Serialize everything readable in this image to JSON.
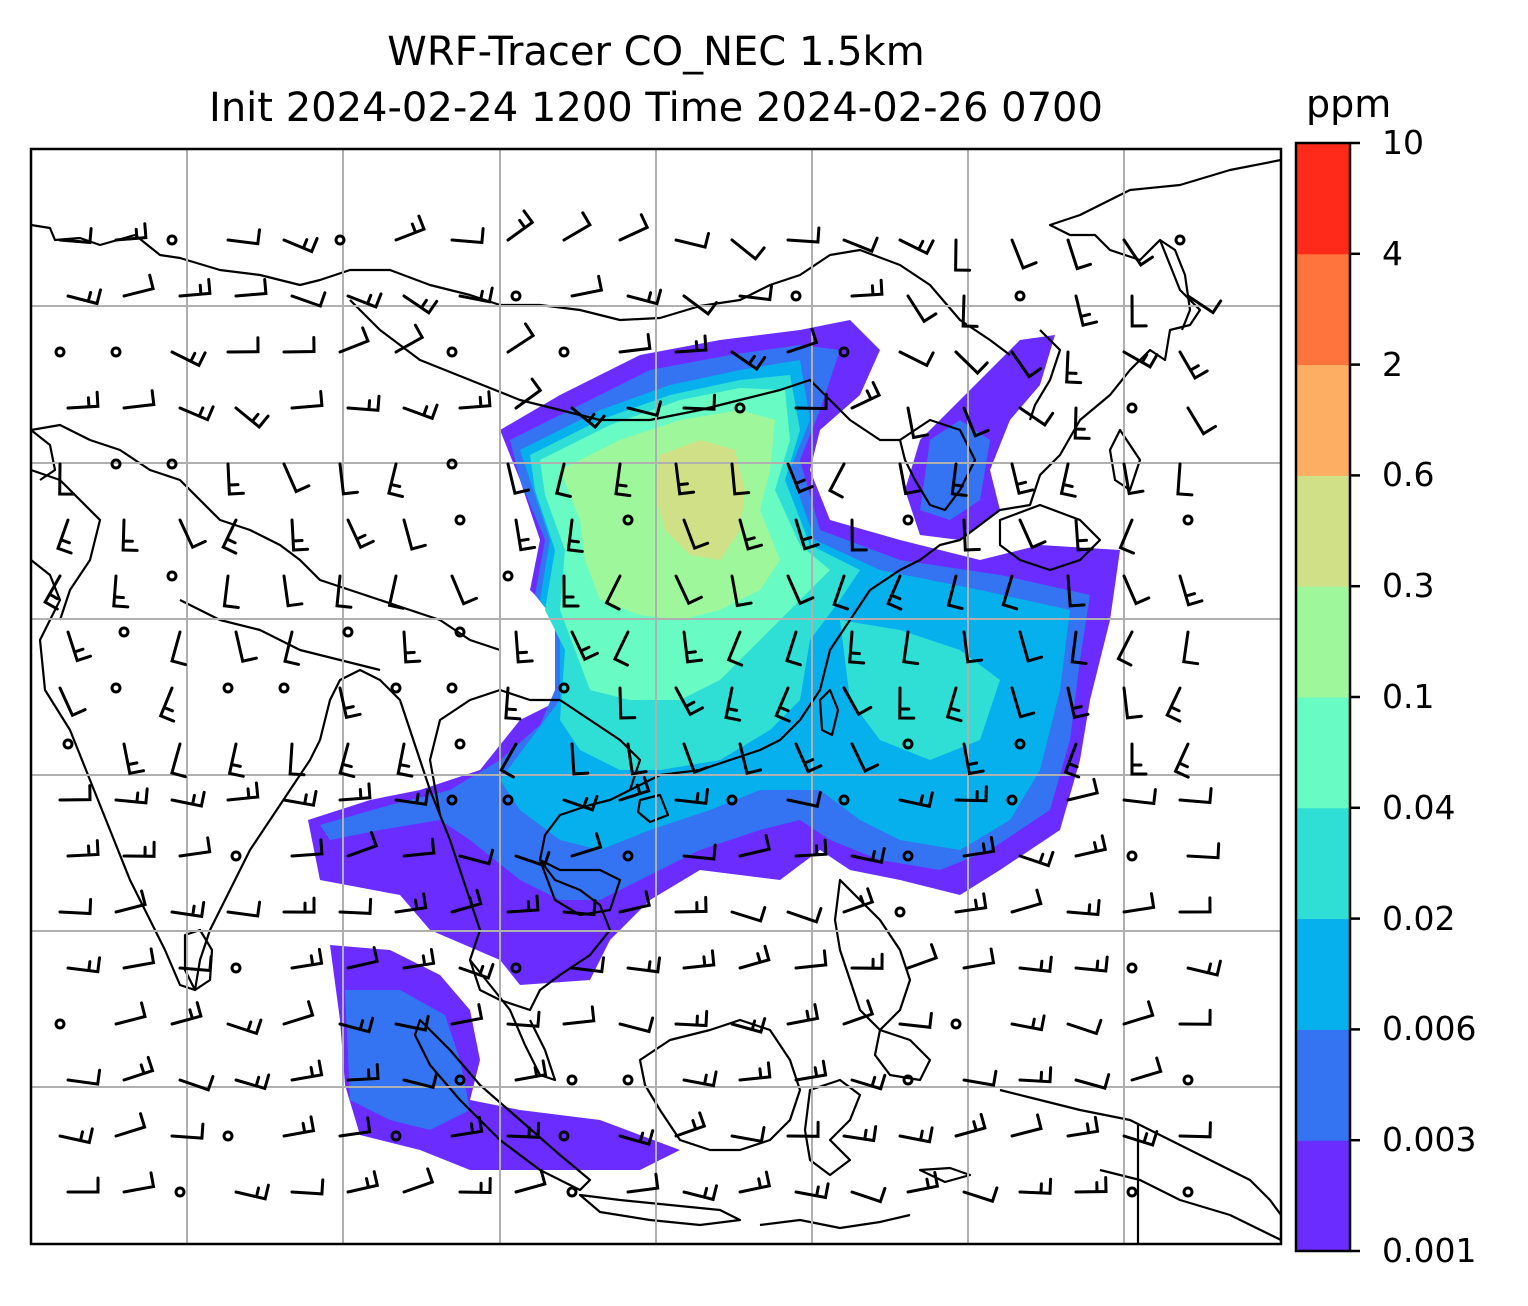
{
  "title": {
    "line1": "WRF-Tracer CO_NEC 1.5km",
    "line2": "Init 2024-02-24 1200 Time 2024-02-26 0700"
  },
  "colorbar": {
    "unit": "ppm",
    "ticks": [
      "0.001",
      "0.003",
      "0.006",
      "0.02",
      "0.04",
      "0.1",
      "0.3",
      "0.6",
      "2",
      "4",
      "10"
    ],
    "colors": [
      "#6a2cff",
      "#3474f2",
      "#06b0ec",
      "#2fdfd6",
      "#68fbc3",
      "#9ef79b",
      "#d0e086",
      "#fdae62",
      "#ff733c",
      "#ff2a19"
    ]
  },
  "map": {
    "ocean": "#ffffff",
    "coastline": "#000000",
    "gridline": "#b0b0b0",
    "barb": "#000000"
  }
}
